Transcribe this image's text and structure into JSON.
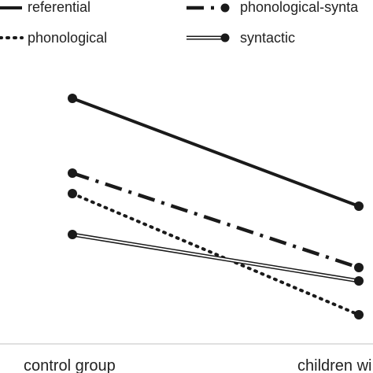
{
  "chart_data": {
    "type": "line",
    "categories": [
      "control group",
      "children wi"
    ],
    "series": [
      {
        "name": "referential",
        "values": [
          125,
          262
        ],
        "style": "solid-thick",
        "color": "#1a1a1a"
      },
      {
        "name": "phonological-synta",
        "values": [
          220,
          340
        ],
        "style": "dash-dot-thick",
        "color": "#1a1a1a"
      },
      {
        "name": "phonological",
        "values": [
          246,
          400
        ],
        "style": "dotted-thick",
        "color": "#1a1a1a"
      },
      {
        "name": "syntactic",
        "values": [
          298,
          357
        ],
        "style": "double-line",
        "color": "#1a1a1a"
      }
    ],
    "axis_note": "y values are read as downward positions; no y axis or ticks printed",
    "legend_placement": "top",
    "grid": false,
    "title": "",
    "xlabel": "",
    "ylabel": ""
  }
}
